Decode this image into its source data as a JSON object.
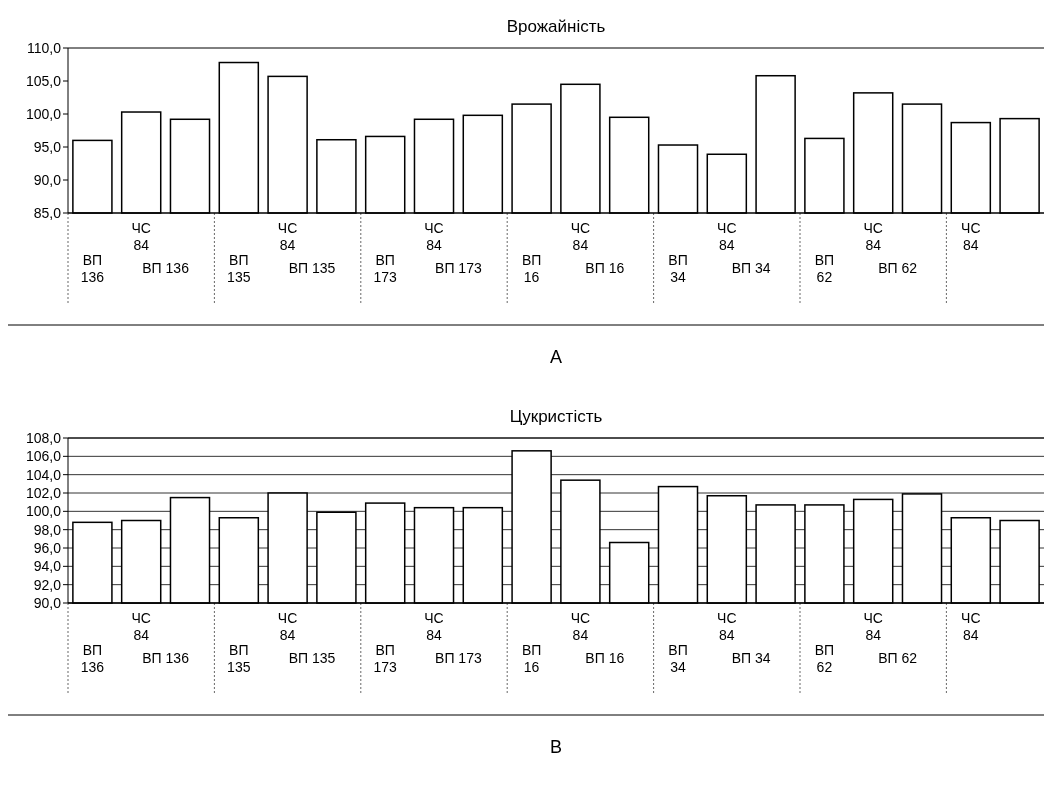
{
  "chart_data": [
    {
      "type": "bar",
      "title": "Врожайність",
      "categories": [
        "ВП 136",
        "ЧС 84",
        null,
        "ВП 135",
        "ЧС 84",
        null,
        "ВП 173",
        "ЧС 84",
        null,
        "ВП 16",
        "ЧС 84",
        null,
        "ВП 34",
        "ЧС 84",
        null,
        "ВП 62",
        "ЧС 84",
        null,
        "ЧС 84",
        null
      ],
      "values": [
        96.0,
        100.3,
        99.2,
        107.8,
        105.7,
        96.1,
        96.6,
        99.2,
        99.8,
        101.5,
        104.5,
        99.5,
        95.3,
        93.9,
        105.8,
        96.3,
        103.2,
        101.5,
        98.7,
        99.3
      ],
      "color": "#ffffff",
      "ylim": [
        85,
        110
      ],
      "yticks": [
        {
          "value": 85,
          "label": "85,0"
        },
        {
          "value": 90,
          "label": "90,0"
        },
        {
          "value": 95,
          "label": "95,0"
        },
        {
          "value": 100,
          "label": "100,0"
        },
        {
          "value": 105,
          "label": "105,0"
        },
        {
          "value": 110,
          "label": "110,0"
        }
      ],
      "grid": false,
      "annotations": [
        "ВП 136",
        "ВП 135",
        "ВП 173",
        "ВП 16",
        "ВП 34",
        "ВП 62",
        "А"
      ]
    },
    {
      "type": "bar",
      "title": "Цукристість",
      "categories": [
        "ВП 136",
        "ЧС 84",
        null,
        "ВП 135",
        "ЧС 84",
        null,
        "ВП 173",
        "ЧС 84",
        null,
        "ВП 16",
        "ЧС 84",
        null,
        "ВП 34",
        "ЧС 84",
        null,
        "ВП 62",
        "ЧС 84",
        null,
        "ЧС 84",
        null
      ],
      "values": [
        98.8,
        99.0,
        101.5,
        99.3,
        102.0,
        99.9,
        100.9,
        100.4,
        100.4,
        106.6,
        103.4,
        96.6,
        102.7,
        101.7,
        100.7,
        100.7,
        101.3,
        101.9,
        99.3,
        99.0
      ],
      "color": "#ffffff",
      "ylim": [
        90,
        108
      ],
      "yticks": [
        {
          "value": 90,
          "label": "90,0"
        },
        {
          "value": 92,
          "label": "92,0"
        },
        {
          "value": 94,
          "label": "94,0"
        },
        {
          "value": 96,
          "label": "96,0"
        },
        {
          "value": 98,
          "label": "98,0"
        },
        {
          "value": 100,
          "label": "100,0"
        },
        {
          "value": 102,
          "label": "102,0"
        },
        {
          "value": 104,
          "label": "104,0"
        },
        {
          "value": 106,
          "label": "106,0"
        },
        {
          "value": 108,
          "label": "108,0"
        }
      ],
      "grid": "y",
      "annotations": [
        "ВП 136",
        "ВП 135",
        "ВП 173",
        "ВП 16",
        "ВП 34",
        "ВП 62",
        "В"
      ]
    }
  ]
}
